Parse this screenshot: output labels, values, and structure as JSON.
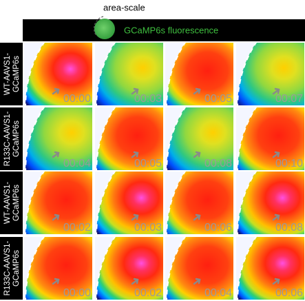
{
  "header": {
    "scale_label": "area-scale",
    "title": "GCaMP6s fluorescence"
  },
  "rows": [
    {
      "label": [
        "WT-AAVS1-",
        "GCaMP6s"
      ],
      "times": [
        "00:00",
        "00:03",
        "00:05",
        "00:07"
      ]
    },
    {
      "label": [
        "R133C-AAVS1-",
        "GCaMP6s"
      ],
      "times": [
        "00:04",
        "00:05",
        "00:08",
        "00:10"
      ]
    },
    {
      "label": [
        "WT-AAVS1-",
        "GCaMP6s"
      ],
      "times": [
        "00:02",
        "00:03",
        "00:06",
        "00:08"
      ]
    },
    {
      "label": [
        "R133C-AAVS1-",
        "GCaMP6s"
      ],
      "times": [
        "00:00",
        "00:02",
        "00:04",
        "00:06"
      ]
    }
  ]
}
